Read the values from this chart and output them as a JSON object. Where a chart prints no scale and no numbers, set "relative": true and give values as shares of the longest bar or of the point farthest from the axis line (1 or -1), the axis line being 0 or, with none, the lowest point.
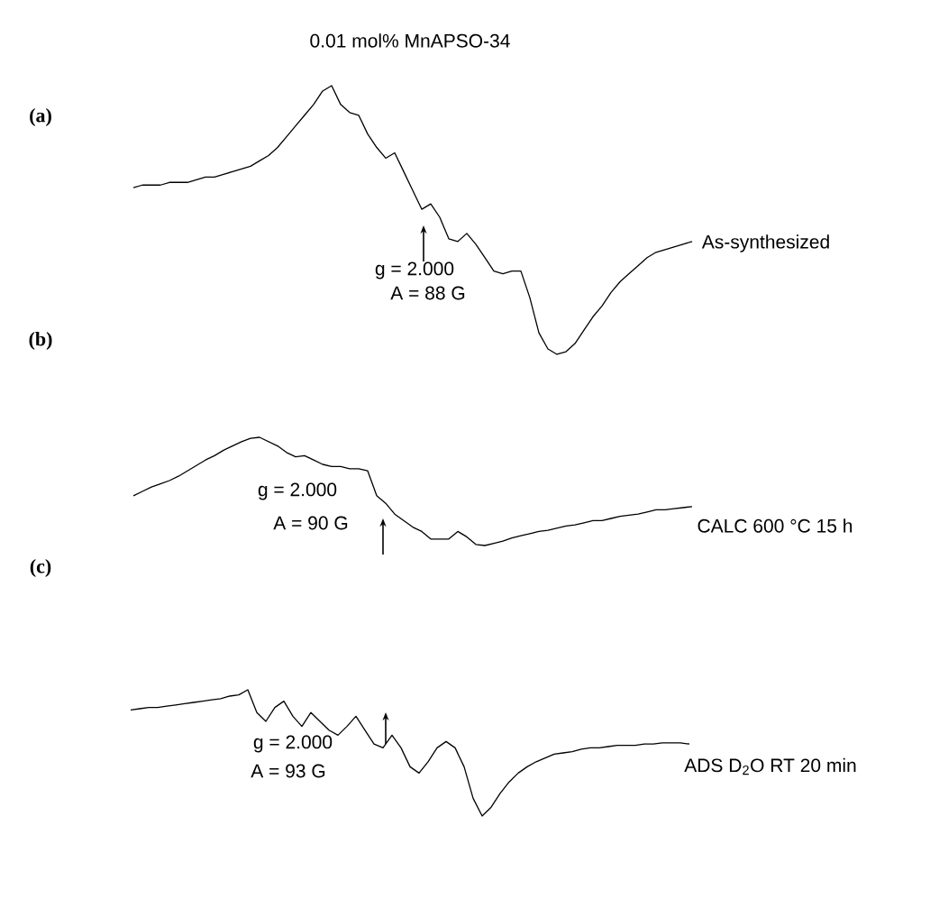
{
  "chart_data": [
    {
      "type": "line",
      "title": "0.01 mol% MnAPSO-34",
      "relative": true,
      "annotations": [
        "(a)",
        "g = 2.000",
        "A = 88 G"
      ],
      "categories": [
        null,
        null,
        null,
        null,
        null,
        null,
        null,
        null,
        null,
        null,
        null,
        null,
        null,
        null,
        null,
        null,
        null,
        null,
        null,
        null,
        null,
        null,
        null,
        null,
        null,
        null,
        null,
        null,
        null,
        null,
        null,
        null,
        null,
        null,
        null,
        null,
        null,
        null,
        null,
        null,
        null,
        null,
        null,
        null,
        null,
        null,
        null,
        null,
        null,
        null,
        null,
        null,
        null,
        null,
        null,
        null,
        null,
        null,
        null,
        null,
        null,
        null,
        null
      ],
      "series": [
        {
          "name": "As-synthesized",
          "color": "#000000",
          "values": [
            0.62,
            0.63,
            0.63,
            0.63,
            0.64,
            0.64,
            0.64,
            0.65,
            0.66,
            0.66,
            0.67,
            0.68,
            0.69,
            0.7,
            0.72,
            0.74,
            0.77,
            0.81,
            0.85,
            0.89,
            0.93,
            0.98,
            1,
            0.93,
            0.9,
            0.89,
            0.82,
            0.77,
            0.73,
            0.75,
            0.68,
            0.61,
            0.54,
            0.56,
            0.51,
            0.43,
            0.42,
            0.45,
            0.41,
            0.36,
            0.31,
            0.3,
            0.31,
            0.31,
            0.21,
            0.08,
            0.02,
            0,
            0.01,
            0.04,
            0.09,
            0.14,
            0.18,
            0.23,
            0.27,
            0.3,
            0.33,
            0.36,
            0.38,
            0.39,
            0.4,
            0.41,
            0.42
          ]
        }
      ]
    },
    {
      "type": "line",
      "relative": true,
      "annotations": [
        "(b)",
        "g = 2.000",
        "A = 90 G"
      ],
      "categories": [
        null,
        null,
        null,
        null,
        null,
        null,
        null,
        null,
        null,
        null,
        null,
        null,
        null,
        null,
        null,
        null,
        null,
        null,
        null,
        null,
        null,
        null,
        null,
        null,
        null,
        null,
        null,
        null,
        null,
        null,
        null,
        null,
        null,
        null,
        null,
        null,
        null,
        null,
        null,
        null,
        null,
        null,
        null,
        null,
        null,
        null,
        null,
        null,
        null,
        null,
        null,
        null,
        null,
        null,
        null,
        null,
        null,
        null,
        null,
        null,
        null,
        null,
        null
      ],
      "series": [
        {
          "name": "CALC 600 °C 15 h",
          "color": "#000000",
          "values": [
            0.46,
            0.5,
            0.54,
            0.57,
            0.6,
            0.64,
            0.69,
            0.74,
            0.79,
            0.83,
            0.88,
            0.92,
            0.96,
            0.99,
            1,
            0.96,
            0.92,
            0.86,
            0.82,
            0.83,
            0.79,
            0.75,
            0.73,
            0.73,
            0.71,
            0.71,
            0.69,
            0.46,
            0.39,
            0.29,
            0.23,
            0.17,
            0.13,
            0.06,
            0.06,
            0.06,
            0.13,
            0.08,
            0.01,
            0,
            0.02,
            0.04,
            0.07,
            0.09,
            0.11,
            0.13,
            0.14,
            0.16,
            0.18,
            0.19,
            0.21,
            0.23,
            0.23,
            0.25,
            0.27,
            0.28,
            0.29,
            0.31,
            0.33,
            0.33,
            0.34,
            0.35,
            0.36
          ]
        }
      ]
    },
    {
      "type": "line",
      "relative": true,
      "annotations": [
        "(c)",
        "g = 2.000",
        "A = 93 G"
      ],
      "categories": [
        null,
        null,
        null,
        null,
        null,
        null,
        null,
        null,
        null,
        null,
        null,
        null,
        null,
        null,
        null,
        null,
        null,
        null,
        null,
        null,
        null,
        null,
        null,
        null,
        null,
        null,
        null,
        null,
        null,
        null,
        null,
        null,
        null,
        null,
        null,
        null,
        null,
        null,
        null,
        null,
        null,
        null,
        null,
        null,
        null,
        null,
        null,
        null,
        null,
        null,
        null,
        null,
        null,
        null,
        null,
        null,
        null,
        null,
        null,
        null,
        null,
        null,
        null
      ],
      "series": [
        {
          "name": "ADS D$_{2}$O RT 20 min",
          "color": "#000000",
          "values": [
            0.84,
            0.85,
            0.86,
            0.86,
            0.87,
            0.88,
            0.89,
            0.9,
            0.91,
            0.92,
            0.93,
            0.95,
            0.96,
            1,
            0.82,
            0.75,
            0.86,
            0.91,
            0.79,
            0.71,
            0.82,
            0.75,
            0.68,
            0.64,
            0.71,
            0.79,
            0.68,
            0.57,
            0.54,
            0.64,
            0.54,
            0.39,
            0.34,
            0.43,
            0.54,
            0.59,
            0.54,
            0.39,
            0.14,
            0,
            0.07,
            0.18,
            0.27,
            0.34,
            0.39,
            0.43,
            0.46,
            0.49,
            0.5,
            0.51,
            0.53,
            0.54,
            0.54,
            0.55,
            0.56,
            0.56,
            0.56,
            0.57,
            0.57,
            0.58,
            0.58,
            0.58,
            0.57
          ]
        }
      ]
    }
  ]
}
